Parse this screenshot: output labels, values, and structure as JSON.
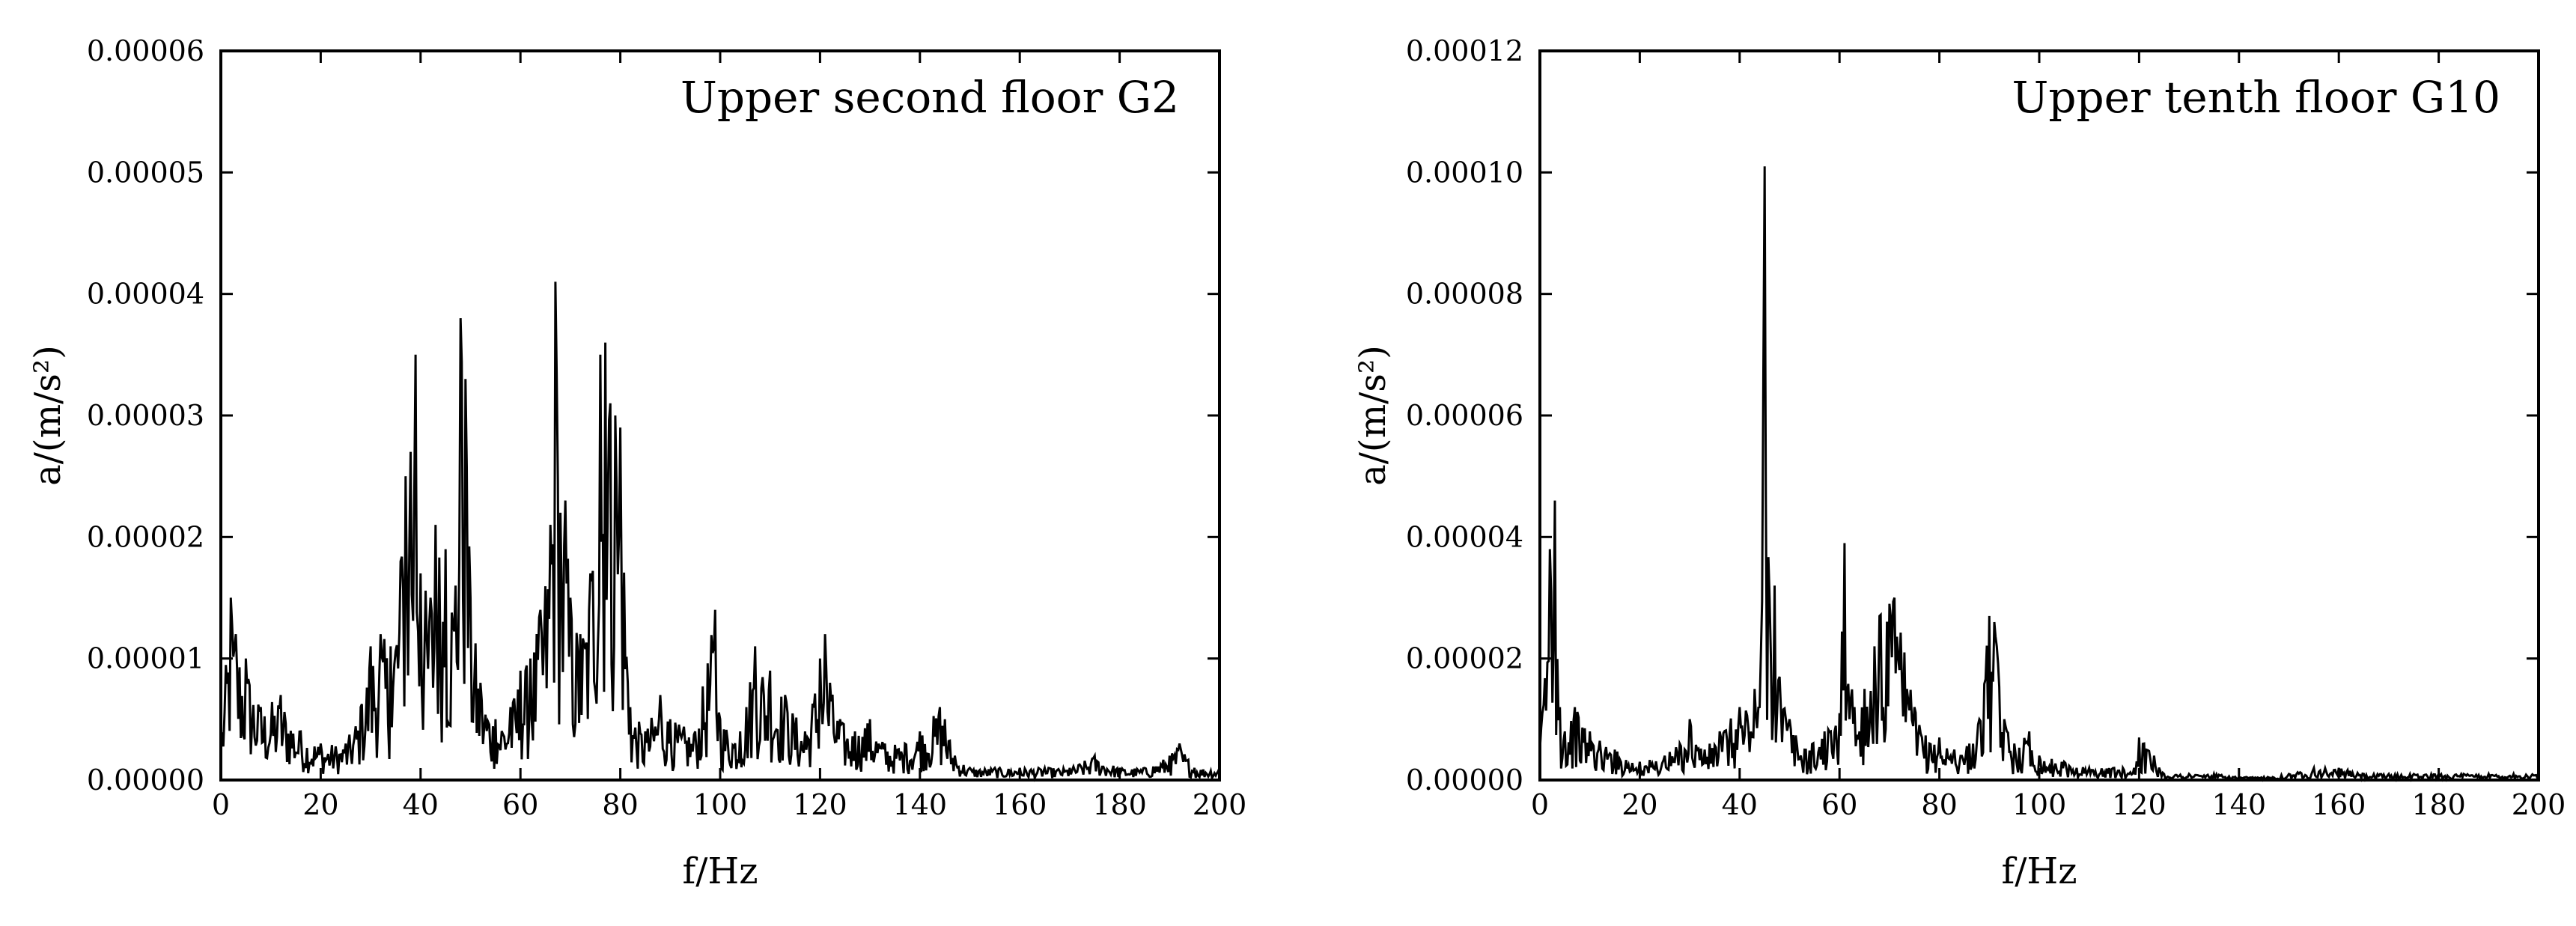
{
  "chart_data": [
    {
      "type": "line",
      "title": "Upper second floor G2",
      "xlabel": "f/Hz",
      "ylabel": "a/(m/s²)",
      "xlim": [
        0,
        200
      ],
      "ylim": [
        0,
        6e-05
      ],
      "xticks": [
        "0",
        "20",
        "40",
        "60",
        "80",
        "100",
        "120",
        "140",
        "160",
        "180",
        "200"
      ],
      "yticks": [
        "0.00000",
        "0.00001",
        "0.00002",
        "0.00003",
        "0.00004",
        "0.00005",
        "0.00006"
      ],
      "grid": false,
      "legend": "none",
      "color": "#000000",
      "series": [
        {
          "x": [
            0,
            2,
            3,
            5,
            8,
            12,
            16,
            20,
            25,
            28,
            30,
            32,
            34,
            36,
            37,
            38,
            39,
            40,
            42,
            43,
            45,
            47,
            48,
            49,
            50,
            52,
            55,
            58,
            60,
            62,
            64,
            66,
            67,
            68,
            69,
            70,
            72,
            74,
            76,
            77,
            78,
            79,
            80,
            82,
            85,
            88,
            90,
            95,
            99,
            100,
            104,
            107,
            110,
            113,
            117,
            120,
            121,
            122,
            124,
            127,
            130,
            133,
            137,
            140,
            144,
            145,
            147,
            150,
            155,
            160,
            165,
            170,
            175,
            180,
            185,
            190,
            192,
            195,
            200
          ],
          "y": [
            4e-06,
            1.5e-05,
            1.2e-05,
            1e-05,
            6e-06,
            7e-06,
            4e-06,
            3e-06,
            3e-06,
            6e-06,
            1.1e-05,
            1.2e-05,
            1.1e-05,
            1.8e-05,
            2.5e-05,
            2.7e-05,
            3.5e-05,
            1.7e-05,
            1.5e-05,
            2.1e-05,
            1.9e-05,
            1.6e-05,
            3.8e-05,
            3.3e-05,
            1.5e-05,
            8e-06,
            5e-06,
            6e-06,
            9e-06,
            1e-05,
            1.4e-05,
            2.1e-05,
            4.1e-05,
            2.2e-05,
            2.3e-05,
            1.5e-05,
            1.2e-05,
            1.7e-05,
            3.5e-05,
            3.6e-05,
            3.1e-05,
            3e-05,
            2.9e-05,
            6e-06,
            4e-06,
            7e-06,
            5e-06,
            4e-06,
            1.4e-05,
            5e-06,
            4e-06,
            1.1e-05,
            9e-06,
            7e-06,
            4e-06,
            1e-05,
            1.2e-05,
            8e-06,
            5e-06,
            4e-06,
            5e-06,
            3e-06,
            3e-06,
            4e-06,
            6e-06,
            5e-06,
            2e-06,
            1e-06,
            1e-06,
            1e-06,
            1e-06,
            1e-06,
            2e-06,
            1e-06,
            1e-06,
            2e-06,
            3e-06,
            1e-06,
            1e-06
          ]
        }
      ]
    },
    {
      "type": "line",
      "title": "Upper tenth floor G10",
      "xlabel": "f/Hz",
      "ylabel": "a/(m/s²)",
      "xlim": [
        0,
        200
      ],
      "ylim": [
        0,
        0.00012
      ],
      "xticks": [
        "0",
        "20",
        "40",
        "60",
        "80",
        "100",
        "120",
        "140",
        "160",
        "180",
        "200"
      ],
      "yticks": [
        "0.00000",
        "0.00002",
        "0.00004",
        "0.00006",
        "0.00008",
        "0.00010",
        "0.00012"
      ],
      "grid": false,
      "legend": "none",
      "color": "#000000",
      "series": [
        {
          "x": [
            0,
            2,
            3,
            4,
            5,
            7,
            10,
            15,
            20,
            25,
            28,
            30,
            33,
            36,
            40,
            43,
            44,
            45,
            46,
            47,
            48,
            50,
            53,
            57,
            60,
            61,
            63,
            65,
            67,
            68,
            70,
            71,
            73,
            75,
            78,
            80,
            83,
            86,
            88,
            90,
            91,
            93,
            95,
            98,
            100,
            105,
            110,
            115,
            119,
            120,
            121,
            123,
            125,
            130,
            135,
            140,
            145,
            150,
            155,
            160,
            165,
            170,
            175,
            180,
            185,
            190,
            195,
            200
          ],
          "y": [
            5e-06,
            3.8e-05,
            4.6e-05,
            1.2e-05,
            8e-06,
            1.2e-05,
            8e-06,
            5e-06,
            3e-06,
            4e-06,
            6e-06,
            1e-05,
            5e-06,
            8e-06,
            1.2e-05,
            1.5e-05,
            1.2e-05,
            0.000101,
            3e-05,
            3.2e-05,
            1.7e-05,
            1e-05,
            5e-06,
            8e-06,
            1.1e-05,
            3.9e-05,
            1.2e-05,
            1.5e-05,
            2.2e-05,
            2.7e-05,
            2.9e-05,
            3e-05,
            2.1e-05,
            1.2e-05,
            6e-06,
            7e-06,
            5e-06,
            6e-06,
            1e-05,
            2.7e-05,
            2.6e-05,
            1e-05,
            6e-06,
            8e-06,
            4e-06,
            3e-06,
            2e-06,
            2e-06,
            2e-06,
            7e-06,
            6e-06,
            4e-06,
            1e-06,
            1e-06,
            1e-06,
            5e-07,
            5e-07,
            1e-06,
            2e-06,
            2e-06,
            1e-06,
            1e-06,
            1e-06,
            1e-06,
            1e-06,
            1e-06,
            1e-06,
            1e-06
          ]
        }
      ]
    }
  ]
}
